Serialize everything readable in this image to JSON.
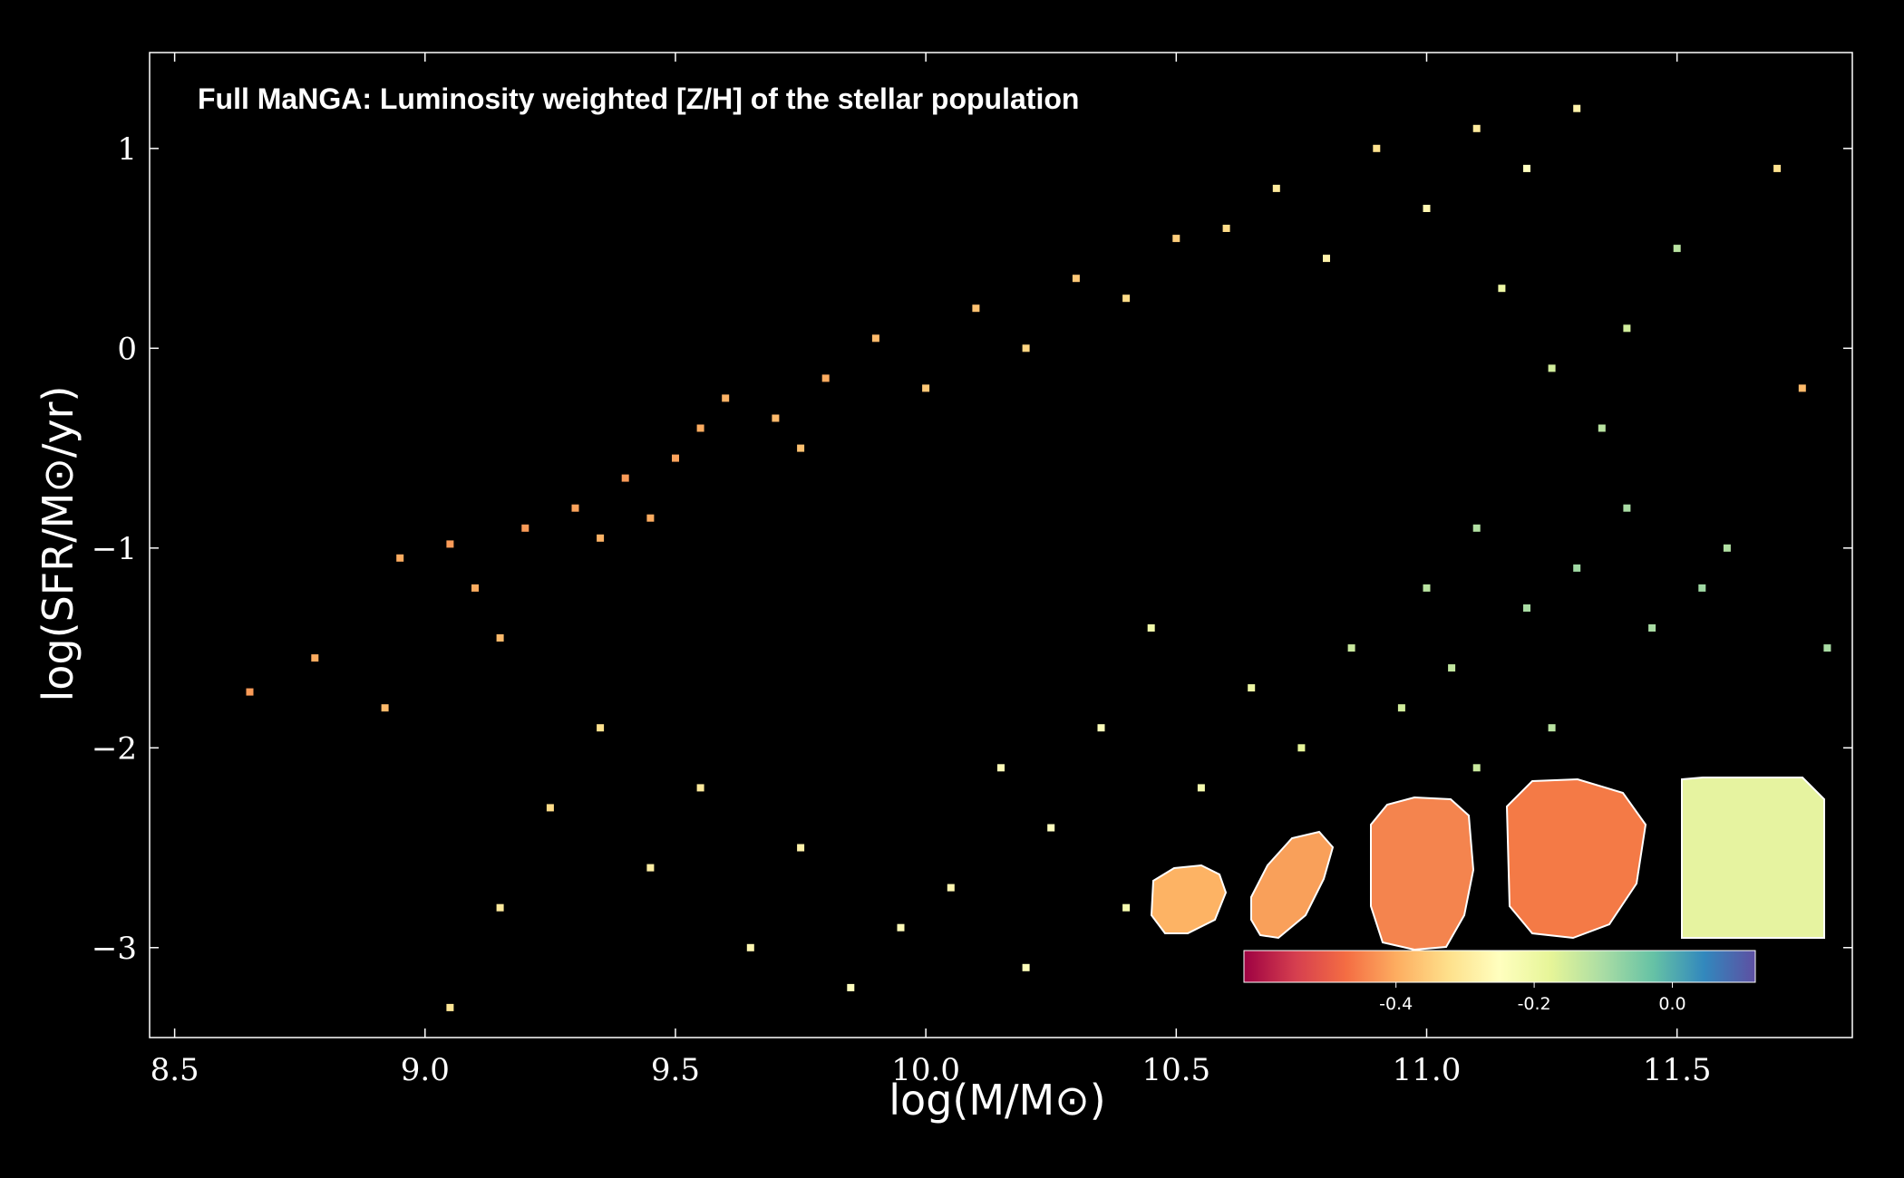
{
  "chart_data": {
    "type": "scatter",
    "title": "Full MaNGA: Luminosity weighted [Z/H] of the stellar population",
    "xlabel": "log(M/M⊙)",
    "ylabel": "log(SFR/M⊙/yr)",
    "xlim": [
      8.45,
      11.85
    ],
    "ylim": [
      -3.45,
      1.48
    ],
    "xticks": [
      8.5,
      9.0,
      9.5,
      10.0,
      10.5,
      11.0,
      11.5
    ],
    "xtick_labels": [
      "8.5",
      "9.0",
      "9.5",
      "10.0",
      "10.5",
      "11.0",
      "11.5"
    ],
    "yticks": [
      1,
      0,
      -1,
      -2,
      -3
    ],
    "ytick_labels": [
      "1",
      "0",
      "−1",
      "−2",
      "−3"
    ],
    "grid": false,
    "colormap": "Spectral",
    "colorbar": {
      "range": [
        -0.62,
        0.12
      ],
      "ticks": [
        -0.4,
        -0.2,
        0.0
      ],
      "tick_labels": [
        "-0.4",
        "-0.2",
        "0.0"
      ],
      "stops": [
        "#9e0142",
        "#d53e4f",
        "#f46d43",
        "#fdae61",
        "#fee08b",
        "#ffffbf",
        "#e6f598",
        "#abdda4",
        "#66c2a5",
        "#3288bd",
        "#5e4fa2"
      ]
    },
    "series": [
      {
        "points": [
          [
            8.65,
            -1.72,
            -0.42
          ],
          [
            8.78,
            -1.55,
            -0.4
          ],
          [
            8.92,
            -1.8,
            -0.38
          ],
          [
            8.95,
            -1.05,
            -0.4
          ],
          [
            9.05,
            -0.98,
            -0.42
          ],
          [
            9.1,
            -1.2,
            -0.4
          ],
          [
            9.15,
            -1.45,
            -0.38
          ],
          [
            9.2,
            -0.9,
            -0.42
          ],
          [
            9.3,
            -0.8,
            -0.41
          ],
          [
            9.35,
            -0.95,
            -0.39
          ],
          [
            9.4,
            -0.65,
            -0.42
          ],
          [
            9.45,
            -0.85,
            -0.4
          ],
          [
            9.5,
            -0.55,
            -0.41
          ],
          [
            9.55,
            -0.4,
            -0.4
          ],
          [
            9.6,
            -0.25,
            -0.39
          ],
          [
            9.7,
            -0.35,
            -0.38
          ],
          [
            9.75,
            -0.5,
            -0.37
          ],
          [
            9.8,
            -0.15,
            -0.4
          ],
          [
            9.9,
            0.05,
            -0.38
          ],
          [
            10.0,
            -0.2,
            -0.36
          ],
          [
            10.1,
            0.2,
            -0.37
          ],
          [
            10.2,
            0.0,
            -0.34
          ],
          [
            10.3,
            0.35,
            -0.36
          ],
          [
            10.4,
            0.25,
            -0.33
          ],
          [
            10.5,
            0.55,
            -0.35
          ],
          [
            10.6,
            0.6,
            -0.33
          ],
          [
            10.7,
            0.8,
            -0.3
          ],
          [
            10.8,
            0.45,
            -0.28
          ],
          [
            10.9,
            1.0,
            -0.32
          ],
          [
            11.0,
            0.7,
            -0.27
          ],
          [
            11.1,
            1.1,
            -0.3
          ],
          [
            11.2,
            0.9,
            -0.25
          ],
          [
            11.3,
            1.2,
            -0.28
          ],
          [
            11.15,
            0.3,
            -0.2
          ],
          [
            11.25,
            -0.1,
            -0.15
          ],
          [
            11.35,
            -0.4,
            -0.12
          ],
          [
            11.4,
            -0.8,
            -0.1
          ],
          [
            11.1,
            -0.9,
            -0.11
          ],
          [
            11.0,
            -1.2,
            -0.12
          ],
          [
            11.2,
            -1.3,
            -0.1
          ],
          [
            11.3,
            -1.1,
            -0.09
          ],
          [
            11.45,
            -1.4,
            -0.1
          ],
          [
            11.55,
            -1.2,
            -0.09
          ],
          [
            11.6,
            -1.0,
            -0.11
          ],
          [
            11.05,
            -1.6,
            -0.13
          ],
          [
            10.95,
            -1.8,
            -0.15
          ],
          [
            10.85,
            -1.5,
            -0.14
          ],
          [
            10.75,
            -2.0,
            -0.18
          ],
          [
            10.65,
            -1.7,
            -0.2
          ],
          [
            10.55,
            -2.2,
            -0.22
          ],
          [
            10.45,
            -1.4,
            -0.21
          ],
          [
            10.35,
            -1.9,
            -0.24
          ],
          [
            10.25,
            -2.4,
            -0.25
          ],
          [
            10.15,
            -2.1,
            -0.26
          ],
          [
            10.05,
            -2.7,
            -0.27
          ],
          [
            9.95,
            -2.9,
            -0.26
          ],
          [
            9.85,
            -3.2,
            -0.25
          ],
          [
            9.75,
            -2.5,
            -0.28
          ],
          [
            9.65,
            -3.0,
            -0.27
          ],
          [
            9.55,
            -2.2,
            -0.3
          ],
          [
            9.45,
            -2.6,
            -0.29
          ],
          [
            9.35,
            -1.9,
            -0.32
          ],
          [
            9.25,
            -2.3,
            -0.33
          ],
          [
            9.15,
            -2.8,
            -0.3
          ],
          [
            9.05,
            -3.3,
            -0.31
          ],
          [
            11.7,
            0.9,
            -0.32
          ],
          [
            11.75,
            -0.2,
            -0.38
          ],
          [
            11.8,
            -1.5,
            -0.1
          ],
          [
            11.5,
            0.5,
            -0.12
          ],
          [
            11.4,
            0.1,
            -0.15
          ],
          [
            10.9,
            -2.4,
            -0.17
          ],
          [
            11.1,
            -2.1,
            -0.14
          ],
          [
            11.25,
            -1.9,
            -0.12
          ],
          [
            10.4,
            -2.8,
            -0.22
          ],
          [
            10.2,
            -3.1,
            -0.24
          ]
        ]
      }
    ],
    "inset_galaxies": [
      {
        "color": "#fdb364"
      },
      {
        "color": "#f9a05a"
      },
      {
        "color": "#f4844e"
      },
      {
        "color": "#f47a46"
      },
      {
        "color": "#e6f3a0"
      }
    ]
  }
}
